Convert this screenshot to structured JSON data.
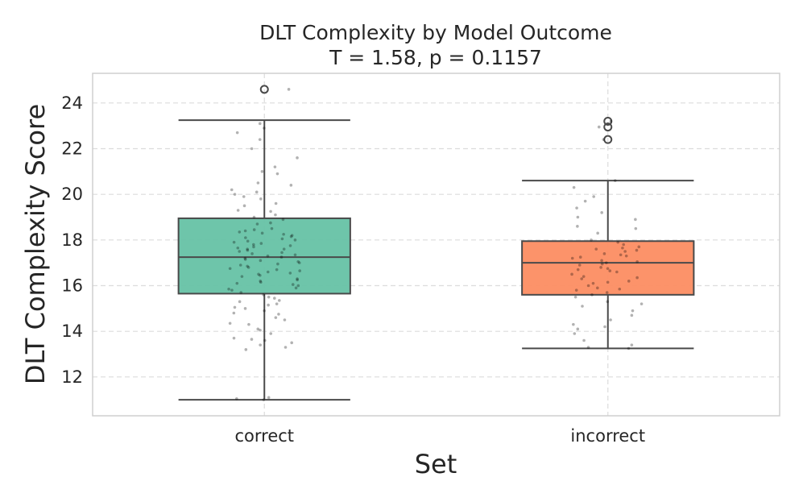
{
  "chart_data": {
    "type": "box",
    "title": "DLT Complexity by Model Outcome",
    "subtitle": "T = 1.58, p = 0.1157",
    "xlabel": "Set",
    "ylabel": "DLT Complexity Score",
    "ylim": [
      10.3,
      25.3
    ],
    "yticks": [
      12,
      14,
      16,
      18,
      20,
      22,
      24
    ],
    "grid": true,
    "categories": [
      "correct",
      "incorrect"
    ],
    "colors": [
      "#66c2a5",
      "#fc8d62"
    ],
    "boxes": [
      {
        "category": "correct",
        "whisker_low": 11.0,
        "q1": 15.65,
        "median": 17.25,
        "q3": 18.95,
        "whisker_high": 23.25,
        "outliers": [
          24.6
        ]
      },
      {
        "category": "incorrect",
        "whisker_low": 13.25,
        "q1": 15.6,
        "median": 17.0,
        "q3": 17.95,
        "whisker_high": 20.6,
        "outliers": [
          22.4,
          22.95,
          23.2
        ]
      }
    ],
    "scatter": [
      {
        "category": "correct",
        "values": [
          11.0,
          11.1,
          11.05,
          13.2,
          13.4,
          13.6,
          13.7,
          13.5,
          13.9,
          14.1,
          14.3,
          14.5,
          14.6,
          14.8,
          14.9,
          15.0,
          15.2,
          15.3,
          15.5,
          15.6,
          15.7,
          15.8,
          15.9,
          16.0,
          16.1,
          16.2,
          16.3,
          16.4,
          16.5,
          16.6,
          16.7,
          16.8,
          16.9,
          17.0,
          17.1,
          17.2,
          17.3,
          17.4,
          17.5,
          17.6,
          17.7,
          17.8,
          17.9,
          18.0,
          18.1,
          18.2,
          18.3,
          18.4,
          18.5,
          18.7,
          18.9,
          19.1,
          19.3,
          19.5,
          19.8,
          20.0,
          20.2,
          20.5,
          20.9,
          21.2,
          21.6,
          22.0,
          22.4,
          22.9,
          23.1,
          24.6,
          16.15,
          16.45,
          16.85,
          17.15,
          17.45,
          17.65,
          17.95,
          18.25,
          16.55,
          17.05,
          17.35,
          17.75,
          18.05,
          15.45,
          15.15,
          14.35,
          13.65,
          19.0,
          19.9,
          20.1,
          16.95,
          17.25,
          17.55,
          16.25,
          15.85,
          18.45,
          18.75,
          14.05,
          15.05,
          16.65,
          17.85,
          18.15,
          19.25,
          21.0,
          22.7,
          13.3,
          16.05,
          17.6,
          16.75,
          18.35,
          15.35,
          14.75,
          19.6,
          20.4
        ]
      },
      {
        "category": "incorrect",
        "values": [
          13.3,
          13.4,
          13.6,
          13.9,
          14.1,
          14.3,
          14.5,
          14.7,
          14.9,
          15.1,
          15.3,
          15.5,
          15.6,
          15.7,
          15.8,
          15.9,
          16.0,
          16.1,
          16.2,
          16.3,
          16.4,
          16.5,
          16.6,
          16.7,
          16.8,
          16.9,
          17.0,
          17.1,
          17.2,
          17.3,
          17.4,
          17.5,
          17.6,
          17.7,
          17.8,
          17.9,
          18.0,
          18.3,
          18.6,
          18.9,
          19.0,
          19.4,
          19.7,
          19.9,
          20.3,
          20.6,
          22.4,
          22.95,
          23.2,
          16.35,
          16.65,
          16.95,
          17.25,
          17.55,
          15.85,
          16.15,
          17.05,
          17.35,
          14.2,
          15.2,
          18.5,
          19.2,
          16.75,
          17.65,
          13.25
        ]
      }
    ]
  }
}
